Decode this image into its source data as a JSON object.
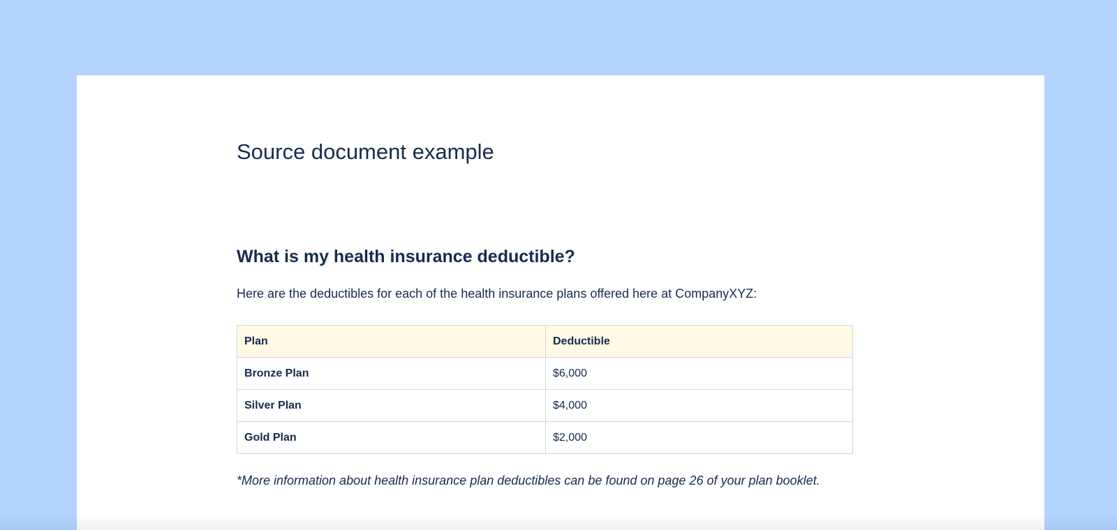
{
  "document": {
    "title": "Source document example",
    "heading": "What is my health insurance deductible?",
    "intro": "Here are the deductibles for each of the health insurance plans offered here at CompanyXYZ:",
    "table": {
      "headers": [
        "Plan",
        "Deductible"
      ],
      "rows": [
        {
          "plan": "Bronze Plan",
          "deductible": "$6,000"
        },
        {
          "plan": "Silver Plan",
          "deductible": "$4,000"
        },
        {
          "plan": "Gold Plan",
          "deductible": "$2,000"
        }
      ]
    },
    "footnote": "*More information about health insurance plan deductibles can be found on page 26 of your plan booklet."
  },
  "colors": {
    "background": "#b3d4ff",
    "header_row": "#fffae6",
    "text": "#172b4d"
  }
}
